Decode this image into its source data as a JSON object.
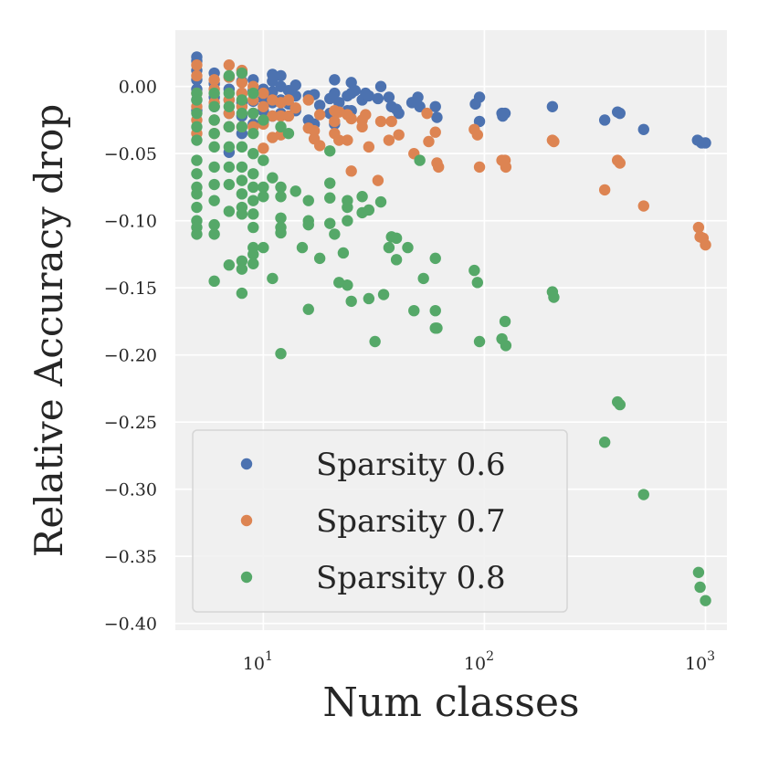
{
  "chart_data": {
    "type": "scatter",
    "title": "",
    "xlabel": "Num classes",
    "ylabel": "Relative Accuracy drop",
    "xscale": "log",
    "xlim": [
      4.0,
      1250
    ],
    "ylim": [
      -0.405,
      0.042
    ],
    "grid": true,
    "legend_position": "lower-left",
    "y_ticks": [
      0.0,
      -0.05,
      -0.1,
      -0.15,
      -0.2,
      -0.25,
      -0.3,
      -0.35,
      -0.4
    ],
    "y_tick_labels": [
      "0.00",
      "−0.05",
      "−0.10",
      "−0.15",
      "−0.20",
      "−0.25",
      "−0.30",
      "−0.35",
      "−0.40"
    ],
    "x_ticks": [
      10,
      100,
      1000
    ],
    "x_tick_labels": [
      {
        "base": "10",
        "exp": "1"
      },
      {
        "base": "10",
        "exp": "2"
      },
      {
        "base": "10",
        "exp": "3"
      }
    ],
    "series": [
      {
        "name": "Sparsity 0.6",
        "color": "#4c72b0",
        "points": [
          [
            5,
            0.022
          ],
          [
            5,
            0.019
          ],
          [
            5,
            0.012
          ],
          [
            5,
            0.005
          ],
          [
            5,
            -0.002
          ],
          [
            5,
            -0.01
          ],
          [
            5,
            -0.018
          ],
          [
            6,
            0.01
          ],
          [
            6,
            0.002
          ],
          [
            6,
            -0.008
          ],
          [
            6,
            -0.015
          ],
          [
            7,
            0.007
          ],
          [
            7,
            -0.002
          ],
          [
            7,
            -0.01
          ],
          [
            7,
            -0.02
          ],
          [
            7,
            -0.03
          ],
          [
            7,
            -0.049
          ],
          [
            8,
            0.004
          ],
          [
            8,
            -0.005
          ],
          [
            8,
            -0.012
          ],
          [
            8,
            -0.022
          ],
          [
            8,
            -0.035
          ],
          [
            9,
            0.005
          ],
          [
            9,
            -0.003
          ],
          [
            9,
            -0.011
          ],
          [
            9,
            -0.02
          ],
          [
            9,
            -0.028
          ],
          [
            10,
            -0.002
          ],
          [
            10,
            -0.009
          ],
          [
            10,
            -0.018
          ],
          [
            10,
            -0.026
          ],
          [
            11,
            0.009
          ],
          [
            11,
            0.004
          ],
          [
            11,
            -0.004
          ],
          [
            11,
            -0.012
          ],
          [
            11,
            -0.022
          ],
          [
            12,
            0.008
          ],
          [
            12,
            0.0
          ],
          [
            12,
            -0.01
          ],
          [
            12,
            -0.02
          ],
          [
            13,
            -0.003
          ],
          [
            13,
            -0.013
          ],
          [
            14,
            0.001
          ],
          [
            14,
            -0.007
          ],
          [
            14,
            -0.018
          ],
          [
            16,
            -0.007
          ],
          [
            16,
            -0.025
          ],
          [
            17,
            -0.006
          ],
          [
            17,
            -0.028
          ],
          [
            18,
            -0.014
          ],
          [
            20,
            -0.009
          ],
          [
            20,
            -0.02
          ],
          [
            21,
            0.005
          ],
          [
            21,
            -0.005
          ],
          [
            21,
            -0.02
          ],
          [
            21,
            -0.028
          ],
          [
            22,
            -0.012
          ],
          [
            24,
            -0.007
          ],
          [
            24,
            -0.018
          ],
          [
            25,
            0.003
          ],
          [
            25,
            -0.005
          ],
          [
            25,
            -0.018
          ],
          [
            26,
            -0.003
          ],
          [
            28,
            -0.01
          ],
          [
            29,
            -0.005
          ],
          [
            30,
            -0.007
          ],
          [
            33,
            -0.009
          ],
          [
            34,
            0.0
          ],
          [
            37,
            -0.008
          ],
          [
            38,
            -0.015
          ],
          [
            40,
            -0.017
          ],
          [
            41,
            -0.02
          ],
          [
            47,
            -0.012
          ],
          [
            50,
            -0.008
          ],
          [
            51,
            -0.015
          ],
          [
            60,
            -0.015
          ],
          [
            61,
            -0.023
          ],
          [
            91,
            -0.013
          ],
          [
            95,
            -0.008
          ],
          [
            95,
            -0.026
          ],
          [
            120,
            -0.02
          ],
          [
            121,
            -0.022
          ],
          [
            124,
            -0.02
          ],
          [
            203,
            -0.015
          ],
          [
            350,
            -0.025
          ],
          [
            400,
            -0.019
          ],
          [
            410,
            -0.02
          ],
          [
            525,
            -0.032
          ],
          [
            920,
            -0.04
          ],
          [
            960,
            -0.042
          ],
          [
            1000,
            -0.042
          ]
        ]
      },
      {
        "name": "Sparsity 0.7",
        "color": "#dd8452",
        "points": [
          [
            5,
            0.016
          ],
          [
            5,
            0.008
          ],
          [
            5,
            -0.005
          ],
          [
            5,
            -0.015
          ],
          [
            5,
            -0.025
          ],
          [
            5,
            -0.035
          ],
          [
            6,
            0.005
          ],
          [
            6,
            -0.002
          ],
          [
            6,
            -0.012
          ],
          [
            6,
            -0.025
          ],
          [
            6,
            -0.035
          ],
          [
            7,
            0.016
          ],
          [
            7,
            0.007
          ],
          [
            7,
            -0.01
          ],
          [
            7,
            -0.02
          ],
          [
            7,
            -0.03
          ],
          [
            8,
            0.012
          ],
          [
            8,
            0.003
          ],
          [
            8,
            -0.005
          ],
          [
            8,
            -0.015
          ],
          [
            8,
            -0.03
          ],
          [
            9,
            0.0
          ],
          [
            9,
            -0.01
          ],
          [
            9,
            -0.02
          ],
          [
            9,
            -0.03
          ],
          [
            10,
            -0.005
          ],
          [
            10,
            -0.015
          ],
          [
            10,
            -0.028
          ],
          [
            10,
            -0.046
          ],
          [
            11,
            -0.01
          ],
          [
            11,
            -0.022
          ],
          [
            11,
            -0.038
          ],
          [
            12,
            -0.012
          ],
          [
            12,
            -0.022
          ],
          [
            12,
            -0.036
          ],
          [
            13,
            -0.01
          ],
          [
            13,
            -0.022
          ],
          [
            14,
            -0.016
          ],
          [
            16,
            -0.01
          ],
          [
            16,
            -0.031
          ],
          [
            17,
            -0.033
          ],
          [
            17,
            -0.039
          ],
          [
            18,
            -0.021
          ],
          [
            18,
            -0.044
          ],
          [
            21,
            -0.018
          ],
          [
            21,
            -0.026
          ],
          [
            21,
            -0.035
          ],
          [
            22,
            -0.019
          ],
          [
            22,
            -0.04
          ],
          [
            24,
            -0.021
          ],
          [
            24,
            -0.04
          ],
          [
            25,
            -0.024
          ],
          [
            25,
            -0.063
          ],
          [
            28,
            -0.025
          ],
          [
            28,
            -0.03
          ],
          [
            29,
            -0.021
          ],
          [
            30,
            -0.045
          ],
          [
            33,
            -0.07
          ],
          [
            34,
            -0.026
          ],
          [
            37,
            -0.04
          ],
          [
            38,
            -0.026
          ],
          [
            41,
            -0.036
          ],
          [
            48,
            -0.05
          ],
          [
            55,
            -0.02
          ],
          [
            56,
            -0.041
          ],
          [
            60,
            -0.034
          ],
          [
            61,
            -0.057
          ],
          [
            62,
            -0.06
          ],
          [
            90,
            -0.032
          ],
          [
            93,
            -0.036
          ],
          [
            95,
            -0.06
          ],
          [
            120,
            -0.055
          ],
          [
            124,
            -0.055
          ],
          [
            125,
            -0.06
          ],
          [
            203,
            -0.04
          ],
          [
            206,
            -0.041
          ],
          [
            350,
            -0.077
          ],
          [
            400,
            -0.055
          ],
          [
            410,
            -0.057
          ],
          [
            525,
            -0.089
          ],
          [
            930,
            -0.105
          ],
          [
            945,
            -0.112
          ],
          [
            975,
            -0.113
          ],
          [
            1000,
            -0.118
          ]
        ]
      },
      {
        "name": "Sparsity 0.8",
        "color": "#55a868",
        "points": [
          [
            5,
            -0.005
          ],
          [
            5,
            -0.01
          ],
          [
            5,
            -0.02
          ],
          [
            5,
            -0.03
          ],
          [
            5,
            -0.04
          ],
          [
            5,
            -0.055
          ],
          [
            5,
            -0.065
          ],
          [
            5,
            -0.075
          ],
          [
            5,
            -0.08
          ],
          [
            5,
            -0.09
          ],
          [
            5,
            -0.1
          ],
          [
            5,
            -0.105
          ],
          [
            5,
            -0.11
          ],
          [
            6,
            -0.005
          ],
          [
            6,
            -0.015
          ],
          [
            6,
            -0.025
          ],
          [
            6,
            -0.035
          ],
          [
            6,
            -0.045
          ],
          [
            6,
            -0.06
          ],
          [
            6,
            -0.073
          ],
          [
            6,
            -0.085
          ],
          [
            6,
            -0.103
          ],
          [
            6,
            -0.11
          ],
          [
            6,
            -0.145
          ],
          [
            7,
            0.008
          ],
          [
            7,
            -0.005
          ],
          [
            7,
            -0.015
          ],
          [
            7,
            -0.03
          ],
          [
            7,
            -0.045
          ],
          [
            7,
            -0.06
          ],
          [
            7,
            -0.073
          ],
          [
            7,
            -0.093
          ],
          [
            7,
            -0.133
          ],
          [
            8,
            0.01
          ],
          [
            8,
            -0.01
          ],
          [
            8,
            -0.02
          ],
          [
            8,
            -0.03
          ],
          [
            8,
            -0.045
          ],
          [
            8,
            -0.06
          ],
          [
            8,
            -0.07
          ],
          [
            8,
            -0.08
          ],
          [
            8,
            -0.09
          ],
          [
            8,
            -0.095
          ],
          [
            8,
            -0.13
          ],
          [
            8,
            -0.136
          ],
          [
            8,
            -0.154
          ],
          [
            9,
            -0.005
          ],
          [
            9,
            -0.02
          ],
          [
            9,
            -0.035
          ],
          [
            9,
            -0.05
          ],
          [
            9,
            -0.065
          ],
          [
            9,
            -0.075
          ],
          [
            9,
            -0.085
          ],
          [
            9,
            -0.095
          ],
          [
            9,
            -0.105
          ],
          [
            9,
            -0.12
          ],
          [
            9,
            -0.125
          ],
          [
            9,
            -0.132
          ],
          [
            10,
            -0.025
          ],
          [
            10,
            -0.055
          ],
          [
            10,
            -0.075
          ],
          [
            10,
            -0.082
          ],
          [
            10,
            -0.12
          ],
          [
            11,
            -0.068
          ],
          [
            11,
            -0.143
          ],
          [
            12,
            -0.03
          ],
          [
            12,
            -0.075
          ],
          [
            12,
            -0.082
          ],
          [
            12,
            -0.098
          ],
          [
            12,
            -0.105
          ],
          [
            12,
            -0.109
          ],
          [
            12,
            -0.199
          ],
          [
            13,
            -0.035
          ],
          [
            14,
            -0.078
          ],
          [
            15,
            -0.12
          ],
          [
            16,
            -0.085
          ],
          [
            16,
            -0.1
          ],
          [
            16,
            -0.103
          ],
          [
            16,
            -0.166
          ],
          [
            18,
            -0.128
          ],
          [
            20,
            -0.048
          ],
          [
            20,
            -0.072
          ],
          [
            20,
            -0.083
          ],
          [
            20,
            -0.102
          ],
          [
            21,
            -0.11
          ],
          [
            22,
            -0.146
          ],
          [
            23,
            -0.124
          ],
          [
            24,
            -0.085
          ],
          [
            24,
            -0.09
          ],
          [
            24,
            -0.1
          ],
          [
            24,
            -0.148
          ],
          [
            25,
            -0.16
          ],
          [
            28,
            -0.082
          ],
          [
            28,
            -0.094
          ],
          [
            30,
            -0.092
          ],
          [
            30,
            -0.158
          ],
          [
            32,
            -0.19
          ],
          [
            34,
            -0.086
          ],
          [
            35,
            -0.155
          ],
          [
            37,
            -0.12
          ],
          [
            38,
            -0.112
          ],
          [
            40,
            -0.113
          ],
          [
            40,
            -0.129
          ],
          [
            45,
            -0.12
          ],
          [
            48,
            -0.167
          ],
          [
            51,
            -0.055
          ],
          [
            53,
            -0.143
          ],
          [
            60,
            -0.128
          ],
          [
            60,
            -0.167
          ],
          [
            60,
            -0.18
          ],
          [
            61,
            -0.18
          ],
          [
            90,
            -0.137
          ],
          [
            93,
            -0.146
          ],
          [
            95,
            -0.19
          ],
          [
            120,
            -0.188
          ],
          [
            124,
            -0.175
          ],
          [
            125,
            -0.193
          ],
          [
            203,
            -0.153
          ],
          [
            206,
            -0.157
          ],
          [
            350,
            -0.265
          ],
          [
            400,
            -0.235
          ],
          [
            410,
            -0.237
          ],
          [
            525,
            -0.304
          ],
          [
            930,
            -0.362
          ],
          [
            945,
            -0.373
          ],
          [
            1000,
            -0.383
          ]
        ]
      }
    ]
  }
}
